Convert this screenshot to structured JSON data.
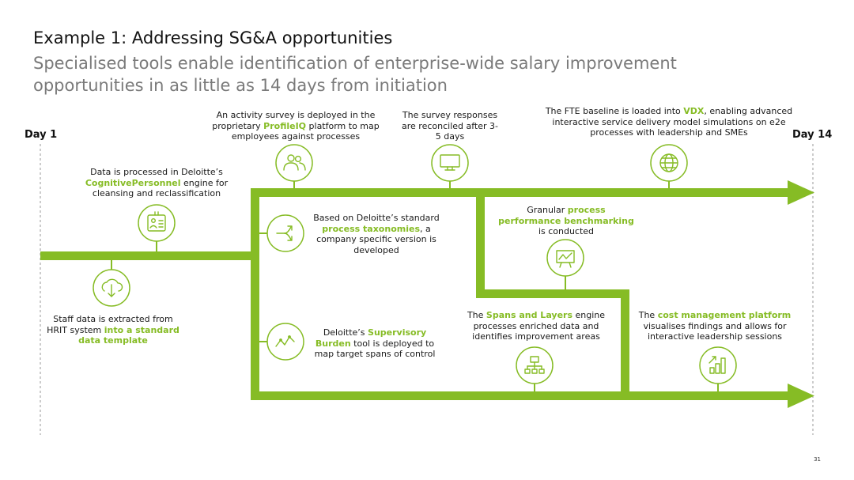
{
  "header": {
    "title": "Example 1: Addressing SG&A opportunities",
    "subtitle": "Specialised tools enable identification of enterprise-wide salary improvement opportunities in as little as 14 days from initiation"
  },
  "timeline": {
    "start_label": "Day 1",
    "end_label": "Day 14"
  },
  "colors": {
    "accent": "#86bc25",
    "subtitle_grey": "#7a7a7a"
  },
  "steps": {
    "cognitive": {
      "icon": "id-card-icon",
      "pre": "Data is processed in Deloitte’s",
      "hl": "CognitivePersonnel",
      "post": " engine for cleansing and reclassification"
    },
    "hrit": {
      "icon": "cloud-download-icon",
      "pre": "Staff data is extracted from HRIT system ",
      "hl": "into a standard data template"
    },
    "survey": {
      "icon": "people-icon",
      "pre": "An activity survey is deployed in the proprietary ",
      "hl": "ProfileIQ",
      "post": " platform to map employees against processes"
    },
    "responses": {
      "icon": "monitor-icon",
      "text": "The survey responses are reconciled after 3-5 days"
    },
    "vdx": {
      "icon": "globe-icon",
      "pre": "The FTE baseline is loaded into ",
      "hl": "VDX",
      "post": ", enabling advanced interactive service delivery model simulations on e2e processes with leadership and SMEs"
    },
    "taxonomy": {
      "icon": "branch-arrow-icon",
      "pre": "Based on Deloitte’s standard ",
      "hl": "process taxonomies",
      "post": ", a company specific version is developed"
    },
    "benchmark": {
      "icon": "presentation-chart-icon",
      "pre": "Granular ",
      "hl": "process performance benchmarking",
      "post": " is conducted"
    },
    "supervisory": {
      "icon": "zigzag-line-icon",
      "pre": "Deloitte’s ",
      "hl": "Supervisory Burden",
      "post": " tool is deployed to map target spans of control"
    },
    "spans": {
      "icon": "org-chart-icon",
      "pre": "The ",
      "hl": "Spans and Layers",
      "post": " engine processes enriched data and identifies improvement areas"
    },
    "cost": {
      "icon": "bar-chart-up-icon",
      "pre": "The ",
      "hl": "cost management platform",
      "post": " visualises findings and allows for interactive leadership sessions"
    }
  },
  "footer": {
    "page_number": "31"
  }
}
